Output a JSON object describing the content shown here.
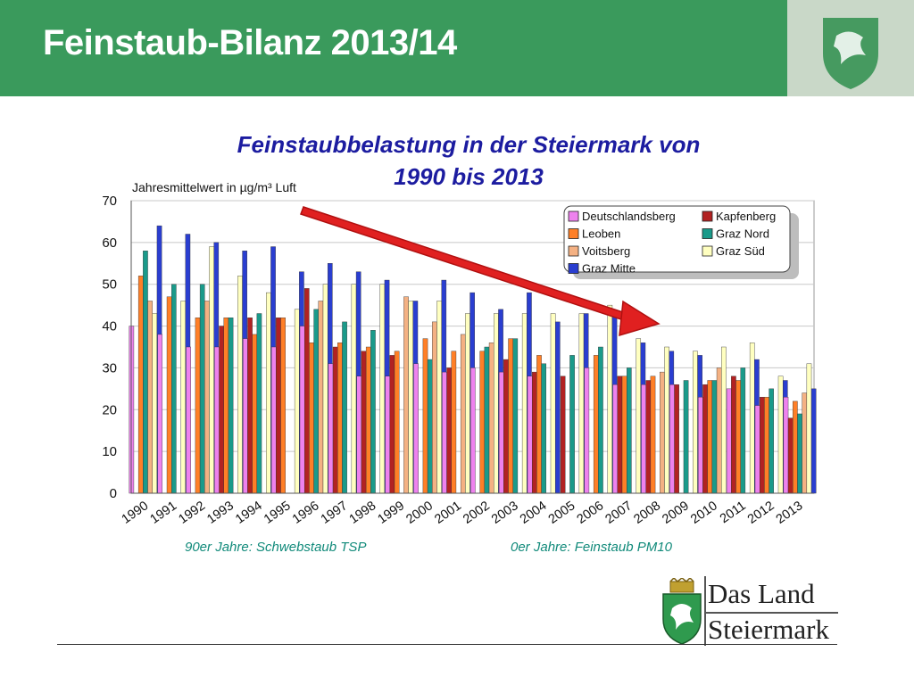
{
  "slide": {
    "title": "Feinstaub-Bilanz 2013/14",
    "header_color": "#3a9a5c"
  },
  "brand": {
    "line1": "Das Land",
    "line2": "Steiermark",
    "logo_icon": "styrian-panther-coat-of-arms"
  },
  "notes": {
    "left": "90er Jahre: Schwebstaub TSP",
    "right": "0er Jahre: Feinstaub PM10"
  },
  "chart_data": {
    "type": "bar",
    "title_line1": "Feinstaubbelastung in der Steiermark von",
    "title_line2": "1990 bis 2013",
    "ylabel": "Jahresmittelwert in µg/m³ Luft",
    "xlabel": "",
    "ylim": [
      0,
      70
    ],
    "yticks": [
      0,
      10,
      20,
      30,
      40,
      50,
      60,
      70
    ],
    "grid": true,
    "legend_position": "top-right",
    "annotation": "red arrow indicating a downward trend",
    "categories": [
      "1990",
      "1991",
      "1992",
      "1993",
      "1994",
      "1995",
      "1996",
      "1997",
      "1998",
      "1999",
      "2000",
      "2001",
      "2002",
      "2003",
      "2004",
      "2005",
      "2006",
      "2007",
      "2008",
      "2009",
      "2010",
      "2011",
      "2012",
      "2013"
    ],
    "series": [
      {
        "name": "Deutschlandsberg",
        "color": "#ee82ee",
        "values": [
          40,
          38,
          35,
          35,
          37,
          35,
          40,
          31,
          28,
          28,
          31,
          29,
          30,
          29,
          28,
          null,
          30,
          26,
          26,
          26,
          23,
          25,
          21,
          23
        ]
      },
      {
        "name": "Kapfenberg",
        "color": "#b22222",
        "values": [
          null,
          null,
          null,
          40,
          42,
          42,
          49,
          35,
          34,
          33,
          null,
          30,
          null,
          32,
          29,
          28,
          null,
          28,
          27,
          26,
          26,
          28,
          23,
          18
        ]
      },
      {
        "name": "Leoben",
        "color": "#ff7f27",
        "values": [
          52,
          47,
          42,
          42,
          38,
          42,
          36,
          36,
          35,
          34,
          37,
          34,
          34,
          37,
          33,
          null,
          33,
          28,
          28,
          null,
          27,
          27,
          23,
          22
        ]
      },
      {
        "name": "Graz Nord",
        "color": "#1a9a8a",
        "values": [
          58,
          50,
          50,
          42,
          43,
          null,
          44,
          41,
          39,
          null,
          32,
          null,
          35,
          37,
          31,
          33,
          35,
          30,
          null,
          27,
          27,
          30,
          25,
          19
        ]
      },
      {
        "name": "Voitsberg",
        "color": "#f4b183",
        "values": [
          46,
          null,
          46,
          null,
          null,
          null,
          46,
          null,
          null,
          47,
          41,
          38,
          36,
          null,
          null,
          null,
          null,
          null,
          29,
          null,
          30,
          null,
          null,
          24
        ]
      },
      {
        "name": "Graz Süd",
        "color": "#ffffc0",
        "values": [
          43,
          46,
          59,
          52,
          48,
          44,
          50,
          50,
          50,
          46,
          46,
          43,
          43,
          43,
          43,
          43,
          45,
          37,
          35,
          34,
          35,
          36,
          28,
          31
        ]
      },
      {
        "name": "Graz Mitte",
        "color": "#2a3ed0",
        "values": [
          64,
          62,
          60,
          58,
          59,
          53,
          55,
          53,
          51,
          46,
          51,
          48,
          44,
          48,
          41,
          43,
          43,
          36,
          34,
          33,
          null,
          32,
          27,
          25
        ]
      }
    ]
  }
}
